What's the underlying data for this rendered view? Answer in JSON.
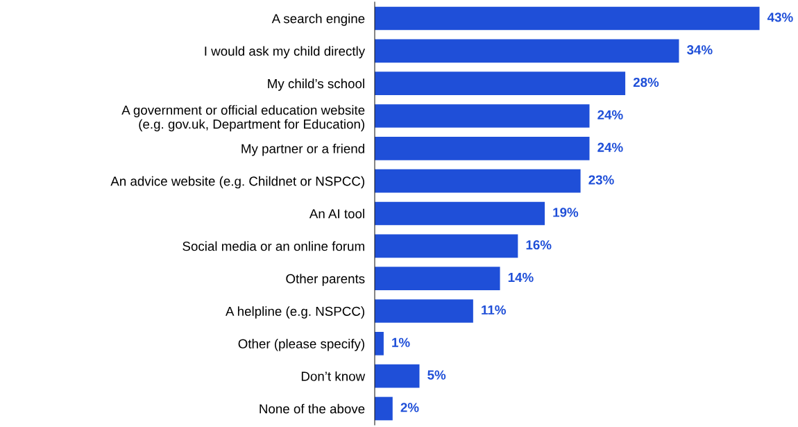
{
  "chart_data": {
    "type": "bar",
    "orientation": "horizontal",
    "categories": [
      "A search engine",
      "I would ask my child directly",
      "My child’s school",
      "A government or official education website\n(e.g. gov.uk, Department for Education)",
      "My partner or a friend",
      "An advice website (e.g. Childnet or NSPCC)",
      "An AI tool",
      "Social media or an online forum",
      "Other parents",
      "A helpline (e.g. NSPCC)",
      "Other (please specify)",
      "Don’t know",
      "None of the above"
    ],
    "values": [
      43,
      34,
      28,
      24,
      24,
      23,
      19,
      16,
      14,
      11,
      1,
      5,
      2
    ],
    "value_labels": [
      "43%",
      "34%",
      "28%",
      "24%",
      "24%",
      "23%",
      "19%",
      "16%",
      "14%",
      "11%",
      "1%",
      "5%",
      "2%"
    ],
    "color": "#1f4fd8",
    "grid": false,
    "legend": false
  }
}
